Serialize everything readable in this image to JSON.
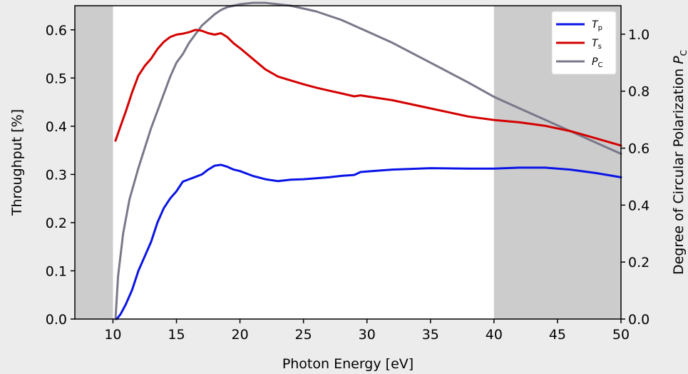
{
  "chart_data": {
    "type": "line",
    "xlabel": "Photon Energy [eV]",
    "ylabel_left": "Throughput [%]",
    "ylabel_right": "Degree of Circular Polarization ",
    "ylabel_right_symbol": "P",
    "ylabel_right_sub": "C",
    "xlim": [
      7,
      50
    ],
    "ylim_left": [
      0,
      0.65
    ],
    "ylim_right": [
      0,
      1.1
    ],
    "x_ticks": [
      10,
      15,
      20,
      25,
      30,
      35,
      40,
      45,
      50
    ],
    "y_ticks_left": [
      0.0,
      0.1,
      0.2,
      0.3,
      0.4,
      0.5,
      0.6
    ],
    "y_ticks_left_labels": [
      "0.0",
      "0.1",
      "0.2",
      "0.3",
      "0.4",
      "0.5",
      "0.6"
    ],
    "y_ticks_right": [
      0.0,
      0.2,
      0.4,
      0.6,
      0.8,
      1.0
    ],
    "y_ticks_right_labels": [
      "0.0",
      "0.2",
      "0.4",
      "0.6",
      "0.8",
      "1.0"
    ],
    "shaded_regions": [
      [
        7,
        10
      ],
      [
        40,
        50
      ]
    ],
    "shade_color": "#cccccc",
    "legend_position": "top-right",
    "series": [
      {
        "name": "T",
        "sub": "p",
        "color": "#0a14e6",
        "axis": "left",
        "points": [
          [
            10.3,
            0.0
          ],
          [
            10.6,
            0.01
          ],
          [
            11,
            0.03
          ],
          [
            11.5,
            0.06
          ],
          [
            12,
            0.1
          ],
          [
            12.5,
            0.13
          ],
          [
            13,
            0.16
          ],
          [
            13.5,
            0.2
          ],
          [
            14,
            0.23
          ],
          [
            14.5,
            0.25
          ],
          [
            15,
            0.265
          ],
          [
            15.5,
            0.285
          ],
          [
            16,
            0.29
          ],
          [
            16.5,
            0.295
          ],
          [
            17,
            0.3
          ],
          [
            17.5,
            0.31
          ],
          [
            18,
            0.318
          ],
          [
            18.5,
            0.32
          ],
          [
            19,
            0.316
          ],
          [
            19.5,
            0.31
          ],
          [
            20,
            0.307
          ],
          [
            21,
            0.297
          ],
          [
            22,
            0.29
          ],
          [
            23,
            0.286
          ],
          [
            24,
            0.289
          ],
          [
            25,
            0.29
          ],
          [
            26,
            0.292
          ],
          [
            27,
            0.294
          ],
          [
            28,
            0.297
          ],
          [
            29,
            0.299
          ],
          [
            29.5,
            0.305
          ],
          [
            30,
            0.306
          ],
          [
            32,
            0.31
          ],
          [
            35,
            0.313
          ],
          [
            38,
            0.312
          ],
          [
            40,
            0.312
          ],
          [
            42,
            0.314
          ],
          [
            44,
            0.314
          ],
          [
            46,
            0.31
          ],
          [
            48,
            0.303
          ],
          [
            50,
            0.294
          ]
        ]
      },
      {
        "name": "T",
        "sub": "s",
        "color": "#d40000",
        "axis": "left",
        "points": [
          [
            10.2,
            0.37
          ],
          [
            10.6,
            0.4
          ],
          [
            11,
            0.43
          ],
          [
            11.5,
            0.47
          ],
          [
            12,
            0.505
          ],
          [
            12.5,
            0.525
          ],
          [
            13,
            0.54
          ],
          [
            13.5,
            0.56
          ],
          [
            14,
            0.575
          ],
          [
            14.5,
            0.585
          ],
          [
            15,
            0.59
          ],
          [
            15.5,
            0.592
          ],
          [
            16,
            0.595
          ],
          [
            16.5,
            0.6
          ],
          [
            17,
            0.598
          ],
          [
            17.5,
            0.593
          ],
          [
            18,
            0.59
          ],
          [
            18.5,
            0.593
          ],
          [
            19,
            0.585
          ],
          [
            19.5,
            0.572
          ],
          [
            20,
            0.562
          ],
          [
            21,
            0.54
          ],
          [
            22,
            0.518
          ],
          [
            23,
            0.503
          ],
          [
            24,
            0.495
          ],
          [
            25,
            0.487
          ],
          [
            26,
            0.48
          ],
          [
            27,
            0.474
          ],
          [
            28,
            0.468
          ],
          [
            29,
            0.462
          ],
          [
            29.5,
            0.464
          ],
          [
            30,
            0.462
          ],
          [
            32,
            0.454
          ],
          [
            35,
            0.437
          ],
          [
            38,
            0.42
          ],
          [
            40,
            0.413
          ],
          [
            42,
            0.408
          ],
          [
            44,
            0.401
          ],
          [
            46,
            0.39
          ],
          [
            48,
            0.375
          ],
          [
            50,
            0.36
          ]
        ]
      },
      {
        "name": "P",
        "sub": "C",
        "color": "#797889",
        "axis": "right",
        "points": [
          [
            10.2,
            0.0
          ],
          [
            10.4,
            0.15
          ],
          [
            10.8,
            0.3
          ],
          [
            11.3,
            0.42
          ],
          [
            12,
            0.53
          ],
          [
            12.5,
            0.6
          ],
          [
            13,
            0.67
          ],
          [
            13.5,
            0.73
          ],
          [
            14,
            0.79
          ],
          [
            14.5,
            0.85
          ],
          [
            15,
            0.9
          ],
          [
            15.5,
            0.93
          ],
          [
            16,
            0.97
          ],
          [
            16.5,
            1.0
          ],
          [
            17,
            1.03
          ],
          [
            17.5,
            1.05
          ],
          [
            18,
            1.07
          ],
          [
            18.5,
            1.085
          ],
          [
            19,
            1.095
          ],
          [
            19.5,
            1.1
          ],
          [
            20,
            1.105
          ],
          [
            21,
            1.11
          ],
          [
            22,
            1.11
          ],
          [
            24,
            1.1
          ],
          [
            26,
            1.08
          ],
          [
            28,
            1.05
          ],
          [
            30,
            1.01
          ],
          [
            32,
            0.97
          ],
          [
            35,
            0.9
          ],
          [
            38,
            0.83
          ],
          [
            40,
            0.78
          ],
          [
            42,
            0.74
          ],
          [
            44,
            0.7
          ],
          [
            46,
            0.66
          ],
          [
            48,
            0.62
          ],
          [
            50,
            0.58
          ]
        ]
      }
    ]
  }
}
